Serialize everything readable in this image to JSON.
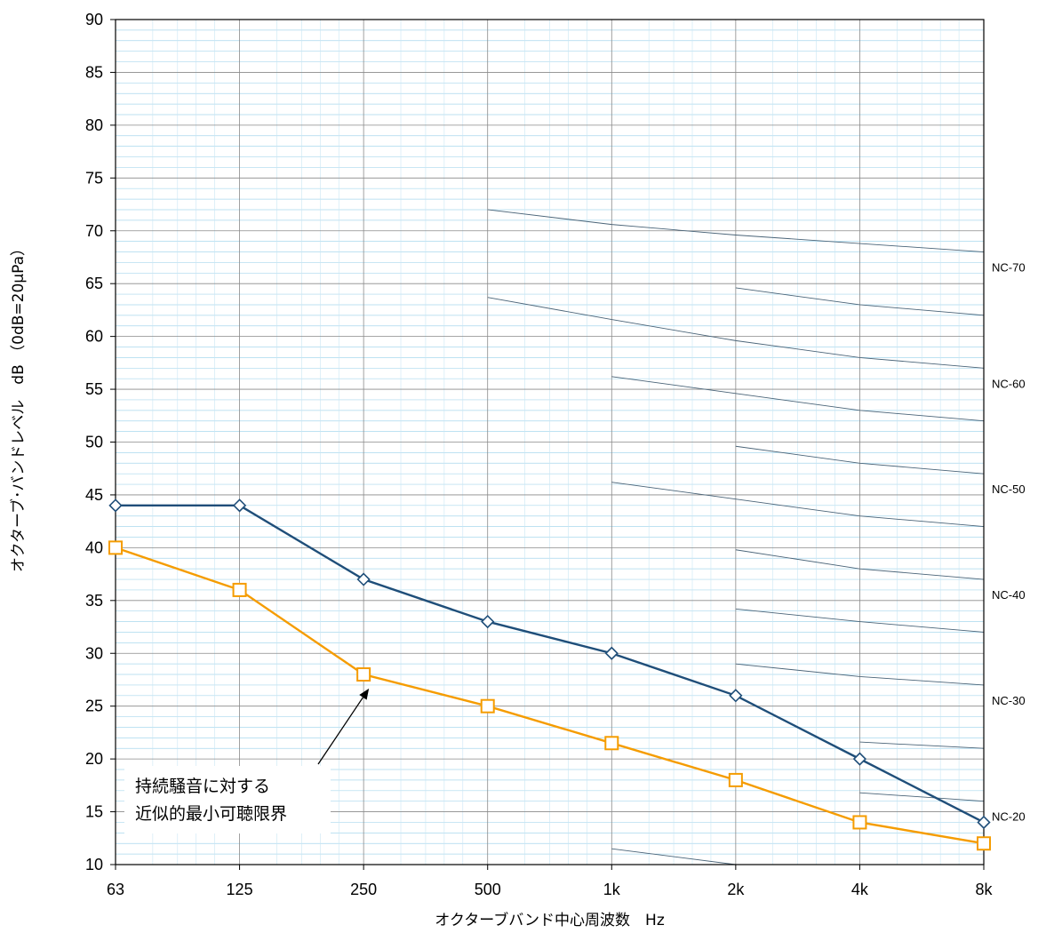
{
  "chart_data": {
    "type": "line",
    "xlabel": "オクターブバンド中心周波数　Hz",
    "ylabel": "オクターブ･バンドレベル　dB （0dB=20μPa）",
    "categories": [
      "63",
      "125",
      "250",
      "500",
      "1k",
      "2k",
      "4k",
      "8k"
    ],
    "ylim": [
      10,
      90
    ],
    "yticks": [
      10,
      15,
      20,
      25,
      30,
      35,
      40,
      45,
      50,
      55,
      60,
      65,
      70,
      75,
      80,
      85,
      90
    ],
    "grid": true,
    "series": [
      {
        "name": "",
        "color": "#1f4e79",
        "marker": "diamond",
        "values": [
          44,
          44,
          37,
          33,
          30,
          26,
          20,
          14
        ]
      },
      {
        "name": "持続騒音に対する近似的最小可聴限界",
        "color": "#f59c00",
        "marker": "square",
        "values": [
          40,
          36,
          28,
          25,
          21.5,
          18,
          14,
          12
        ]
      }
    ],
    "nc_curves": [
      {
        "label": "NC-70",
        "values": [
          null,
          null,
          null,
          72,
          70.6,
          69.6,
          68.8,
          68
        ]
      },
      {
        "label": "",
        "values": [
          null,
          null,
          null,
          null,
          null,
          64.6,
          63,
          62
        ]
      },
      {
        "label": "NC-60",
        "values": [
          null,
          null,
          null,
          63.7,
          61.6,
          59.6,
          58,
          57
        ]
      },
      {
        "label": "",
        "values": [
          null,
          null,
          null,
          null,
          56.2,
          54.6,
          53,
          52
        ]
      },
      {
        "label": "NC-50",
        "values": [
          null,
          null,
          null,
          null,
          null,
          49.6,
          48,
          47
        ]
      },
      {
        "label": "",
        "values": [
          null,
          null,
          null,
          null,
          46.2,
          44.6,
          43,
          42
        ]
      },
      {
        "label": "NC-40",
        "values": [
          null,
          null,
          null,
          null,
          null,
          39.8,
          38,
          37
        ]
      },
      {
        "label": "",
        "values": [
          null,
          null,
          null,
          null,
          null,
          34.2,
          33,
          32
        ]
      },
      {
        "label": "NC-30",
        "values": [
          null,
          null,
          null,
          null,
          null,
          29,
          27.8,
          27
        ]
      },
      {
        "label": "",
        "values": [
          null,
          null,
          null,
          null,
          null,
          null,
          21.6,
          21
        ]
      },
      {
        "label": "NC-20",
        "values": [
          null,
          null,
          null,
          null,
          null,
          null,
          16.8,
          16
        ]
      },
      {
        "label": "",
        "values": [
          null,
          null,
          null,
          null,
          11.5,
          10,
          null,
          null
        ]
      }
    ],
    "annotation": {
      "lines": [
        "持続騒音に対する",
        "近似的最小可聴限界"
      ],
      "arrow_to": {
        "x": "250",
        "y": 26.5
      }
    }
  }
}
